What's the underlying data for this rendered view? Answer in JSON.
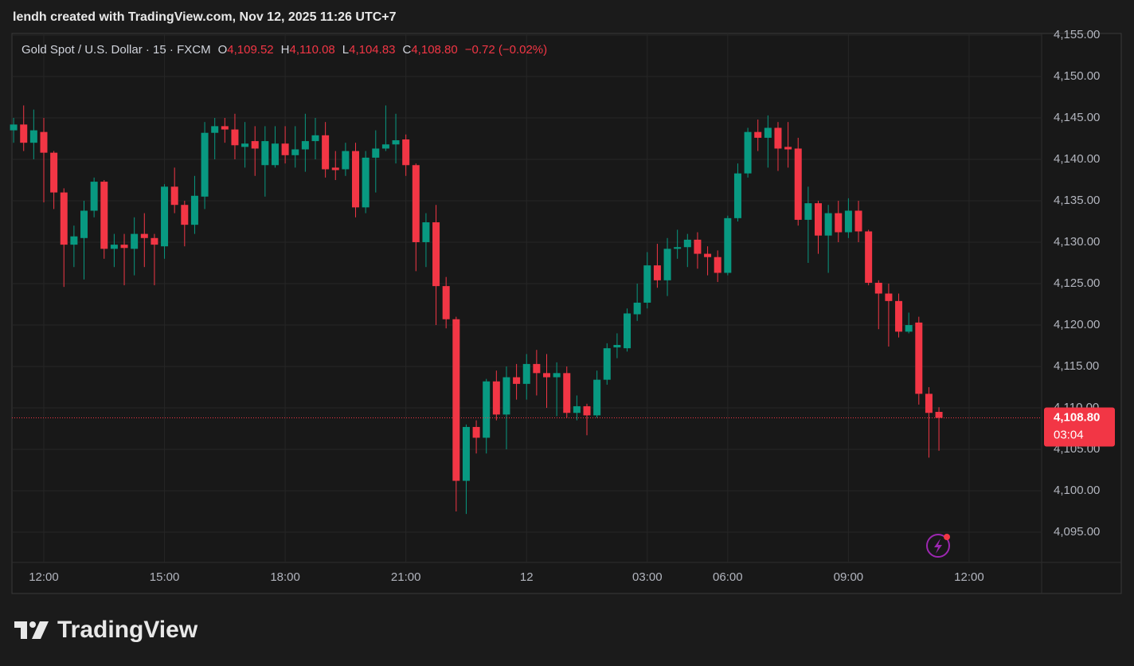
{
  "watermark": "lendh created with TradingView.com, Nov 12, 2025 11:26 UTC+7",
  "logo": "TradingView",
  "chart_data": {
    "type": "candlestick",
    "header": {
      "symbol": "Gold Spot / U.S. Dollar · 15 · FXCM",
      "ohlc": [
        {
          "key": "O",
          "value": "4,109.52"
        },
        {
          "key": "H",
          "value": "4,110.08"
        },
        {
          "key": "L",
          "value": "4,104.83"
        },
        {
          "key": "C",
          "value": "4,108.80"
        }
      ],
      "change": "−0.72 (−0.02%)"
    },
    "categories": [
      null,
      null,
      null,
      "12:00",
      null,
      null,
      null,
      null,
      null,
      null,
      null,
      null,
      null,
      null,
      null,
      "15:00",
      null,
      null,
      null,
      null,
      null,
      null,
      null,
      null,
      null,
      null,
      null,
      "18:00",
      null,
      null,
      null,
      null,
      null,
      null,
      null,
      null,
      null,
      null,
      null,
      "21:00",
      null,
      null,
      null,
      null,
      null,
      null,
      null,
      null,
      null,
      null,
      null,
      "12",
      null,
      null,
      null,
      null,
      null,
      null,
      null,
      null,
      null,
      null,
      null,
      "03:00",
      null,
      null,
      null,
      null,
      null,
      null,
      null,
      "06:00",
      null,
      null,
      null,
      null,
      null,
      null,
      null,
      null,
      null,
      null,
      null,
      "09:00",
      null,
      null,
      null,
      null,
      null,
      null,
      null,
      null,
      null,
      null,
      null,
      "12:00"
    ],
    "open": [
      4143.5,
      4144.2,
      4142,
      4143.3,
      4140.8,
      4136,
      4129.7,
      4130.5,
      4133.8,
      4137.3,
      4129.2,
      4129.7,
      4129.2,
      4131,
      4130.5,
      4129.5,
      4136.7,
      4134.5,
      4132.1,
      4135.5,
      4143.2,
      4144,
      4143.6,
      4141.5,
      4142.2,
      4139.3,
      4139.3,
      4141.9,
      4140.5,
      4141.2,
      4142.2,
      4142.9,
      4139,
      4138.8,
      4141,
      4134.2,
      4140.2,
      4141.3,
      4141.8,
      4142.4,
      4139.3,
      4130,
      4132.4,
      4124.7,
      4120.7,
      4101.2,
      4107.7,
      4106.4,
      4113.2,
      4109.2,
      4113.7,
      4112.9,
      4115.3,
      4114.2,
      4113.7,
      4114.2,
      4109.4,
      4110.2,
      4109.1,
      4113.4,
      4117.3,
      4117.2,
      4121.3,
      4122.7,
      4127.2,
      4125.4,
      4129.2,
      4129.4,
      4130.3,
      4128.6,
      4128.2,
      4126.3,
      4132.9,
      4138.3,
      4143.3,
      4142.6,
      4143.8,
      4141.5,
      4141.3,
      4132.7,
      4134.7,
      4130.8,
      4133.5,
      4131.2,
      4133.8,
      4131.3,
      4125.1,
      4123.8,
      4122.9,
      4119.2,
      4120.3,
      4111.7,
      4109.52,
      null,
      null,
      null
    ],
    "high": [
      4145,
      4146.5,
      4146,
      4145,
      4141,
      4136.5,
      4132,
      4135,
      4137.8,
      4137.5,
      4131,
      4131,
      4133,
      4133.5,
      4131,
      4137,
      4139,
      4135,
      4138,
      4144.5,
      4145,
      4145,
      4145.5,
      4144.5,
      4144,
      4144,
      4144,
      4144,
      4144,
      4145.5,
      4145,
      4144.5,
      4141,
      4142,
      4142,
      4141,
      4143.5,
      4146.5,
      4145.5,
      4143,
      4139.5,
      4133.5,
      4134.5,
      4125.8,
      4121,
      4108,
      4108.5,
      4113.5,
      4114.5,
      4115,
      4115.3,
      4116.5,
      4117,
      4116.5,
      4115.5,
      4115,
      4111.5,
      4110.5,
      4114.5,
      4117.8,
      4119,
      4122,
      4125,
      4128.8,
      4129.8,
      4130.5,
      4131.5,
      4131,
      4131.2,
      4129.5,
      4129,
      4133.2,
      4139.5,
      4143.8,
      4144.8,
      4145.3,
      4144.5,
      4144.5,
      4142.6,
      4136.7,
      4135,
      4134.5,
      4135,
      4135.3,
      4135,
      4131.5,
      4125.4,
      4125,
      4123.8,
      4121.5,
      4121,
      4112.5,
      4110.08,
      null,
      null,
      null
    ],
    "low": [
      4142,
      4141,
      4140,
      4134.8,
      4134,
      4124.6,
      4127,
      4125.5,
      4133,
      4128,
      4127,
      4124.8,
      4126,
      4127,
      4124.8,
      4128,
      4133.5,
      4129.5,
      4131,
      4134,
      4140,
      4142,
      4140,
      4139,
      4138,
      4135.5,
      4139,
      4139.5,
      4139,
      4138.5,
      4140,
      4137.8,
      4137.5,
      4138,
      4133,
      4133.5,
      4136,
      4141,
      4139.5,
      4138,
      4126.5,
      4127,
      4120,
      4119.6,
      4097.5,
      4097.2,
      4104.5,
      4104.5,
      4108.5,
      4105,
      4111,
      4111,
      4111.5,
      4110,
      4109,
      4108.8,
      4108.5,
      4106.7,
      4108.8,
      4112.8,
      4116,
      4116.8,
      4120.5,
      4122,
      4124.5,
      4123.5,
      4128,
      4127,
      4126.8,
      4126,
      4125.2,
      4126,
      4132.5,
      4137.8,
      4141,
      4139,
      4138.6,
      4139,
      4132,
      4127.5,
      4128.6,
      4126.3,
      4130,
      4130.5,
      4130,
      4124.8,
      4119.5,
      4117.4,
      4118.5,
      4119,
      4110.4,
      4104,
      4104.83,
      null,
      null,
      null
    ],
    "close": [
      4144.2,
      4142,
      4143.5,
      4140.8,
      4136,
      4129.7,
      4130.7,
      4133.8,
      4137.3,
      4129.2,
      4129.7,
      4129.3,
      4131,
      4130.5,
      4129.7,
      4136.7,
      4134.5,
      4132.1,
      4135.6,
      4143.2,
      4144,
      4143.6,
      4141.7,
      4141.9,
      4141.3,
      4142.2,
      4141.9,
      4140.5,
      4141.2,
      4142.2,
      4142.9,
      4138.8,
      4138.7,
      4141,
      4134.2,
      4140.2,
      4141.3,
      4141.8,
      4142.3,
      4139.3,
      4130,
      4132.4,
      4124.7,
      4120.7,
      4101.2,
      4107.7,
      4106.4,
      4113.2,
      4109.2,
      4113.7,
      4112.9,
      4115.3,
      4114.2,
      4113.7,
      4114.2,
      4109.4,
      4110.2,
      4109.1,
      4113.4,
      4117.2,
      4117.6,
      4121.4,
      4122.7,
      4127.2,
      4125.4,
      4129.2,
      4129.4,
      4130.3,
      4128.6,
      4128.2,
      4126.3,
      4132.9,
      4138.3,
      4143.3,
      4142.6,
      4143.8,
      4141.3,
      4141.2,
      4132.7,
      4134.7,
      4130.8,
      4133.5,
      4131.2,
      4133.8,
      4131.3,
      4125.1,
      4123.8,
      4122.9,
      4119.2,
      4120,
      4111.7,
      4109.4,
      4108.8,
      null,
      null,
      null
    ],
    "up_color": "#089981",
    "down_color": "#f23645",
    "ylim": [
      4091.35,
      4155.19
    ],
    "yticks": [
      {
        "value": 4095,
        "label": "4,095.00"
      },
      {
        "value": 4100,
        "label": "4,100.00"
      },
      {
        "value": 4105,
        "label": "4,105.00"
      },
      {
        "value": 4110,
        "label": "4,110.00"
      },
      {
        "value": 4115,
        "label": "4,115.00"
      },
      {
        "value": 4120,
        "label": "4,120.00"
      },
      {
        "value": 4125,
        "label": "4,125.00"
      },
      {
        "value": 4130,
        "label": "4,130.00"
      },
      {
        "value": 4135,
        "label": "4,135.00"
      },
      {
        "value": 4140,
        "label": "4,140.00"
      },
      {
        "value": 4145,
        "label": "4,145.00"
      },
      {
        "value": 4150,
        "label": "4,150.00"
      },
      {
        "value": 4155,
        "label": "4,155.00"
      }
    ],
    "grid": true,
    "last_price_label": "4,108.80",
    "countdown": "03:04"
  }
}
